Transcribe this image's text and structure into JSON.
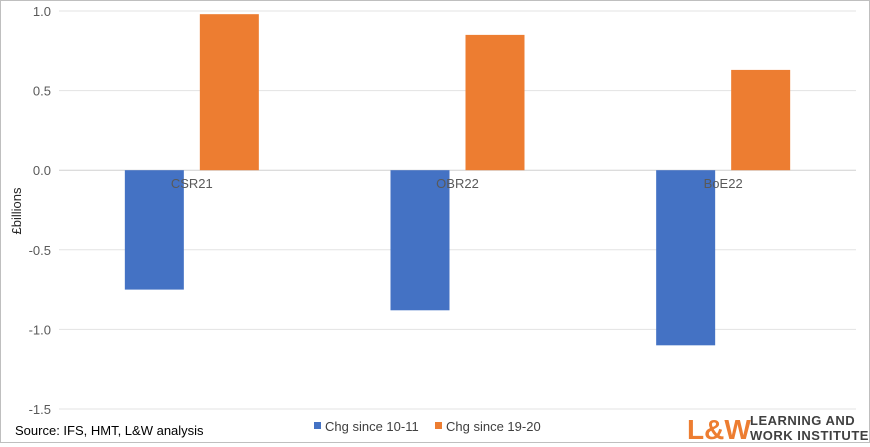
{
  "chart_data": {
    "type": "bar",
    "categories": [
      "CSR21",
      "OBR22",
      "BoE22"
    ],
    "series": [
      {
        "name": "Chg since 10-11",
        "color": "#4472C4",
        "values": [
          -0.75,
          -0.88,
          -1.1
        ]
      },
      {
        "name": "Chg since 19-20",
        "color": "#ED7D31",
        "values": [
          0.98,
          0.85,
          0.63
        ]
      }
    ],
    "ylabel": "£billions",
    "ylim": [
      -1.5,
      1.0
    ],
    "yticks": [
      "1.0",
      "0.5",
      "0.0",
      "-0.5",
      "-1.0",
      "-1.5"
    ],
    "ytick_values": [
      1.0,
      0.5,
      0.0,
      -0.5,
      -1.0,
      -1.5
    ],
    "grid": true,
    "legend_position": "bottom"
  },
  "source": "Source: IFS, HMT, L&W analysis",
  "logo": {
    "mark": "L&W",
    "line1": "LEARNING AND",
    "line2": "WORK INSTITUTE"
  }
}
